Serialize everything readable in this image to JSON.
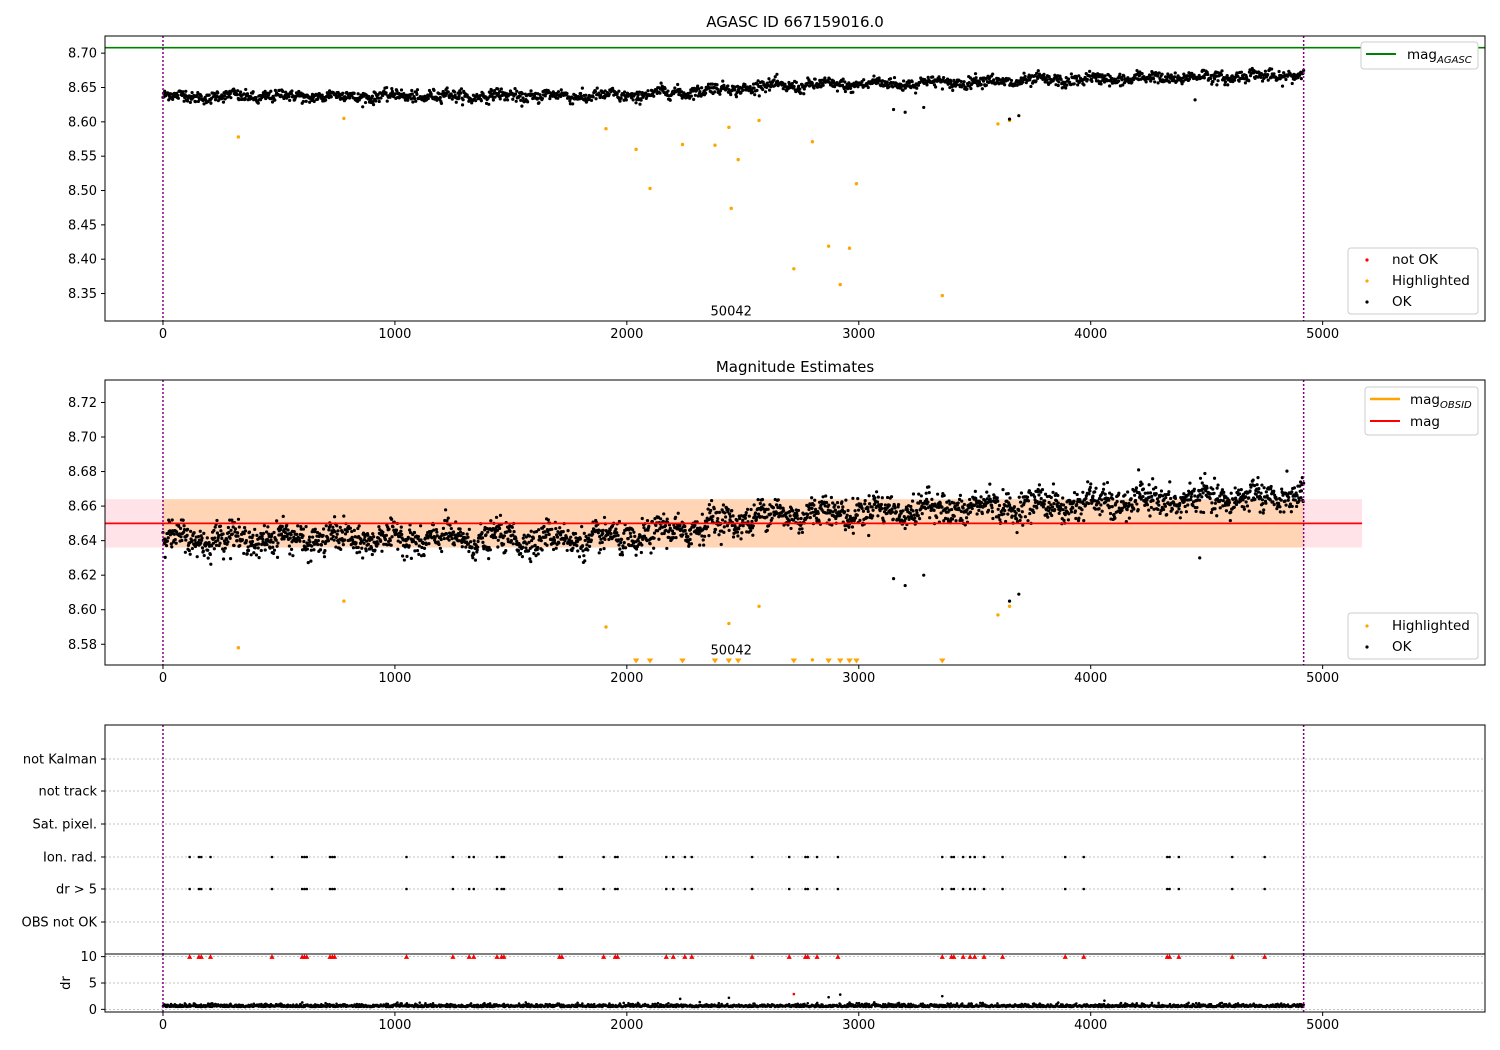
{
  "chart_data": [
    {
      "type": "scatter",
      "title": "AGASC ID 667159016.0",
      "xlim": [
        -250,
        5700
      ],
      "ylim": [
        8.31,
        8.725
      ],
      "xticks": [
        0,
        1000,
        2000,
        3000,
        4000,
        5000
      ],
      "yticks": [
        8.35,
        8.4,
        8.45,
        8.5,
        8.55,
        8.6,
        8.65,
        8.7
      ],
      "vlines": [
        0,
        4918
      ],
      "vline_color": "#800080",
      "hline": {
        "name": "mag_AGASC",
        "value": 8.708,
        "color": "#008000"
      },
      "annotation": {
        "text": "50042",
        "x": 2450,
        "y": 8.325
      },
      "legend_lines": [
        {
          "label_main": "mag",
          "label_sub": "AGASC",
          "color": "#008000"
        }
      ],
      "legend_points": [
        {
          "label": "not OK",
          "color": "#ff0000"
        },
        {
          "label": "Highlighted",
          "color": "#ffa500"
        },
        {
          "label": "OK",
          "color": "#000000"
        }
      ],
      "ok_series": {
        "color": "#000000",
        "n_points": 2000,
        "x_range": [
          0,
          4918
        ],
        "trend": [
          [
            0,
            8.637
          ],
          [
            2000,
            8.638
          ],
          [
            2600,
            8.652
          ],
          [
            4918,
            8.668
          ]
        ],
        "scatter": 0.0075,
        "outliers": [
          [
            3150,
            8.618
          ],
          [
            3200,
            8.614
          ],
          [
            3280,
            8.621
          ],
          [
            3650,
            8.604
          ],
          [
            3690,
            8.609
          ],
          [
            4450,
            8.632
          ]
        ]
      },
      "highlighted_points": {
        "color": "#ffa500",
        "x": [
          325,
          780,
          1910,
          2040,
          2100,
          2240,
          2380,
          2440,
          2450,
          2480,
          2570,
          2720,
          2800,
          2870,
          2920,
          2960,
          2990,
          3360,
          3600,
          3650
        ],
        "y": [
          8.578,
          8.605,
          8.59,
          8.56,
          8.503,
          8.567,
          8.566,
          8.592,
          8.474,
          8.545,
          8.602,
          8.386,
          8.571,
          8.419,
          8.363,
          8.416,
          8.51,
          8.347,
          8.597,
          8.602
        ]
      }
    },
    {
      "type": "scatter",
      "title": "Magnitude Estimates",
      "xlim": [
        -250,
        5700
      ],
      "ylim": [
        8.568,
        8.733
      ],
      "xticks": [
        0,
        1000,
        2000,
        3000,
        4000,
        5000
      ],
      "yticks": [
        8.58,
        8.6,
        8.62,
        8.64,
        8.66,
        8.68,
        8.7,
        8.72
      ],
      "vlines": [
        0,
        4918
      ],
      "vline_color": "#800080",
      "mag_line": {
        "value": 8.65,
        "color": "#ff0000",
        "band": [
          8.636,
          8.664
        ],
        "band_color": "#ffc0cb",
        "x_range": [
          -250,
          5170
        ]
      },
      "mag_obsid_band": {
        "band": [
          8.636,
          8.664
        ],
        "color": "#ffa500",
        "x_range": [
          0,
          4918
        ]
      },
      "annotation": {
        "text": "50042",
        "x": 2450,
        "y": 8.577
      },
      "legend_lines": [
        {
          "label_main": "mag",
          "label_sub": "OBSID",
          "color": "#ffa500"
        },
        {
          "label_main": "mag",
          "label_sub": "",
          "color": "#ff0000"
        }
      ],
      "legend_points": [
        {
          "label": "Highlighted",
          "color": "#ffa500"
        },
        {
          "label": "OK",
          "color": "#000000"
        }
      ],
      "ok_series": {
        "color": "#000000",
        "n_points": 2600,
        "x_range": [
          0,
          4918
        ],
        "trend": [
          [
            0,
            8.641
          ],
          [
            2000,
            8.641
          ],
          [
            2600,
            8.655
          ],
          [
            4918,
            8.666
          ]
        ],
        "scatter": 0.0075,
        "outliers": [
          [
            3150,
            8.618
          ],
          [
            3200,
            8.614
          ],
          [
            3280,
            8.62
          ],
          [
            3650,
            8.605
          ],
          [
            3690,
            8.609
          ],
          [
            4470,
            8.63
          ]
        ]
      },
      "highlighted_points": {
        "color": "#ffa500",
        "x": [
          325,
          780,
          1910,
          2440,
          2570,
          2800,
          3600,
          3650
        ],
        "y": [
          8.578,
          8.605,
          8.59,
          8.592,
          8.602,
          8.571,
          8.597,
          8.602
        ]
      },
      "offscale_markers": {
        "color": "#ffa500",
        "x": [
          2040,
          2100,
          2240,
          2380,
          2440,
          2480,
          2720,
          2870,
          2920,
          2960,
          2990,
          3360
        ]
      }
    },
    {
      "type": "scatter",
      "title": "",
      "xlim": [
        -250,
        5700
      ],
      "xticks": [
        0,
        1000,
        2000,
        3000,
        4000,
        5000
      ],
      "vlines": [
        0,
        4918
      ],
      "vline_color": "#800080",
      "flag_rows": [
        "not Kalman",
        "not track",
        "Sat. pixel.",
        "Ion. rad.",
        "dr > 5",
        "OBS not OK"
      ],
      "flag_events": {
        "Ion. rad.": [
          115,
          155,
          165,
          205,
          470,
          600,
          610,
          620,
          720,
          730,
          740,
          1050,
          1250,
          1320,
          1340,
          1440,
          1460,
          1470,
          1710,
          1720,
          1900,
          1950,
          1960,
          2170,
          2200,
          2250,
          2280,
          2540,
          2700,
          2770,
          2780,
          2820,
          2910,
          3360,
          3400,
          3410,
          3450,
          3480,
          3500,
          3540,
          3620,
          3890,
          3970,
          4330,
          4340,
          4380,
          4610,
          4750
        ],
        "dr > 5": [
          115,
          155,
          165,
          205,
          470,
          600,
          610,
          620,
          720,
          730,
          740,
          1050,
          1250,
          1320,
          1340,
          1440,
          1460,
          1470,
          1710,
          1720,
          1900,
          1950,
          1960,
          2170,
          2200,
          2250,
          2280,
          2540,
          2700,
          2770,
          2780,
          2820,
          2910,
          3360,
          3400,
          3410,
          3450,
          3480,
          3500,
          3540,
          3620,
          3890,
          3970,
          4330,
          4340,
          4380,
          4610,
          4750
        ]
      },
      "dr_axis": {
        "ylabel": "dr",
        "ylim": [
          -0.5,
          10.5
        ],
        "yticks": [
          0,
          5,
          10
        ],
        "clip_value": 10,
        "clipped_color": "#ff0000",
        "extra_points": [
          [
            2720,
            2.9,
            "#ff0000"
          ],
          [
            2230,
            2.0,
            "#000000"
          ],
          [
            2440,
            2.2,
            "#000000"
          ],
          [
            2870,
            2.3,
            "#000000"
          ],
          [
            2920,
            2.8,
            "#000000"
          ],
          [
            3360,
            2.5,
            "#000000"
          ]
        ]
      }
    }
  ]
}
